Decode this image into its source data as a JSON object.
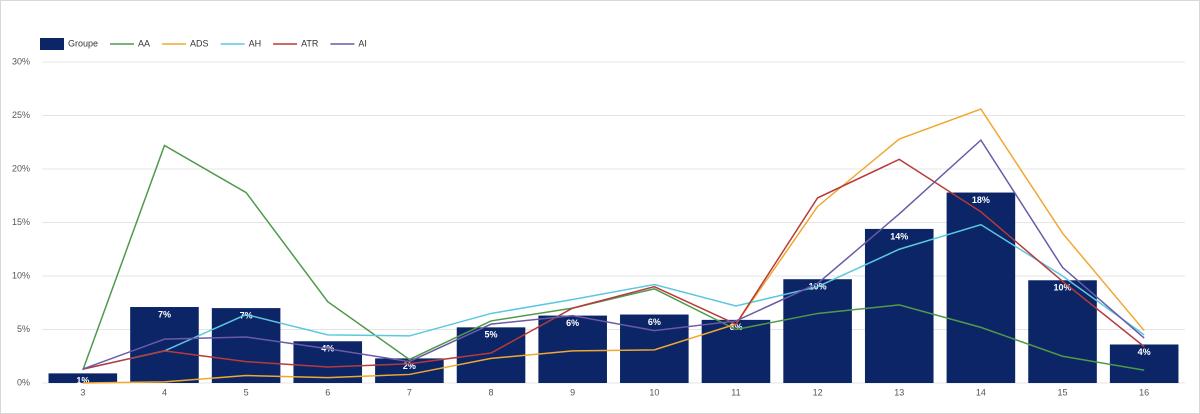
{
  "chart_data": {
    "type": "bar",
    "categories": [
      "3",
      "4",
      "5",
      "6",
      "7",
      "8",
      "9",
      "10",
      "11",
      "12",
      "13",
      "14",
      "15",
      "16"
    ],
    "series": [
      {
        "name": "Groupe",
        "type": "bar",
        "color": "#0b2566",
        "values": [
          0.9,
          7.1,
          7.0,
          3.9,
          2.3,
          5.2,
          6.3,
          6.4,
          5.9,
          9.7,
          14.4,
          17.8,
          9.6,
          3.6
        ],
        "value_labels": [
          "1%",
          "7%",
          "7%",
          "4%",
          "2%",
          "5%",
          "6%",
          "6%",
          "6%",
          "10%",
          "14%",
          "18%",
          "10%",
          "4%"
        ]
      },
      {
        "name": "AA",
        "type": "line",
        "color": "#4f9a4a",
        "values": [
          1.2,
          22.2,
          17.8,
          7.6,
          2.2,
          5.8,
          7.0,
          8.8,
          5.0,
          6.5,
          7.3,
          5.2,
          2.5,
          1.2
        ]
      },
      {
        "name": "ADS",
        "type": "line",
        "color": "#f0a830",
        "values": [
          0,
          0.1,
          0.7,
          0.5,
          0.8,
          2.3,
          3.0,
          3.1,
          5.5,
          16.5,
          22.8,
          25.6,
          14.0,
          4.9
        ]
      },
      {
        "name": "AH",
        "type": "line",
        "color": "#5bc8e0",
        "values": [
          1.3,
          3.0,
          6.4,
          4.5,
          4.4,
          6.5,
          7.8,
          9.2,
          7.2,
          9.0,
          12.5,
          14.8,
          10.0,
          4.5
        ]
      },
      {
        "name": "ATR",
        "type": "line",
        "color": "#b83a3a",
        "values": [
          1.3,
          3.0,
          2.0,
          1.5,
          1.8,
          2.8,
          7.0,
          9.0,
          5.5,
          17.3,
          20.9,
          16.0,
          9.5,
          3.4
        ]
      },
      {
        "name": "AI",
        "type": "line",
        "color": "#6a5aa8",
        "values": [
          1.3,
          4.1,
          4.3,
          3.2,
          2.0,
          5.5,
          6.3,
          4.9,
          5.8,
          9.3,
          15.8,
          22.7,
          10.8,
          4.2
        ]
      }
    ],
    "ylim": [
      0,
      30
    ],
    "yticks": [
      {
        "value": 0,
        "label": "0%"
      },
      {
        "value": 5,
        "label": "5%"
      },
      {
        "value": 10,
        "label": "10%"
      },
      {
        "value": 15,
        "label": "15%"
      },
      {
        "value": 20,
        "label": "20%"
      },
      {
        "value": 25,
        "label": "25%"
      },
      {
        "value": 30,
        "label": "30%"
      }
    ],
    "grid": true,
    "legend": "top-left"
  }
}
